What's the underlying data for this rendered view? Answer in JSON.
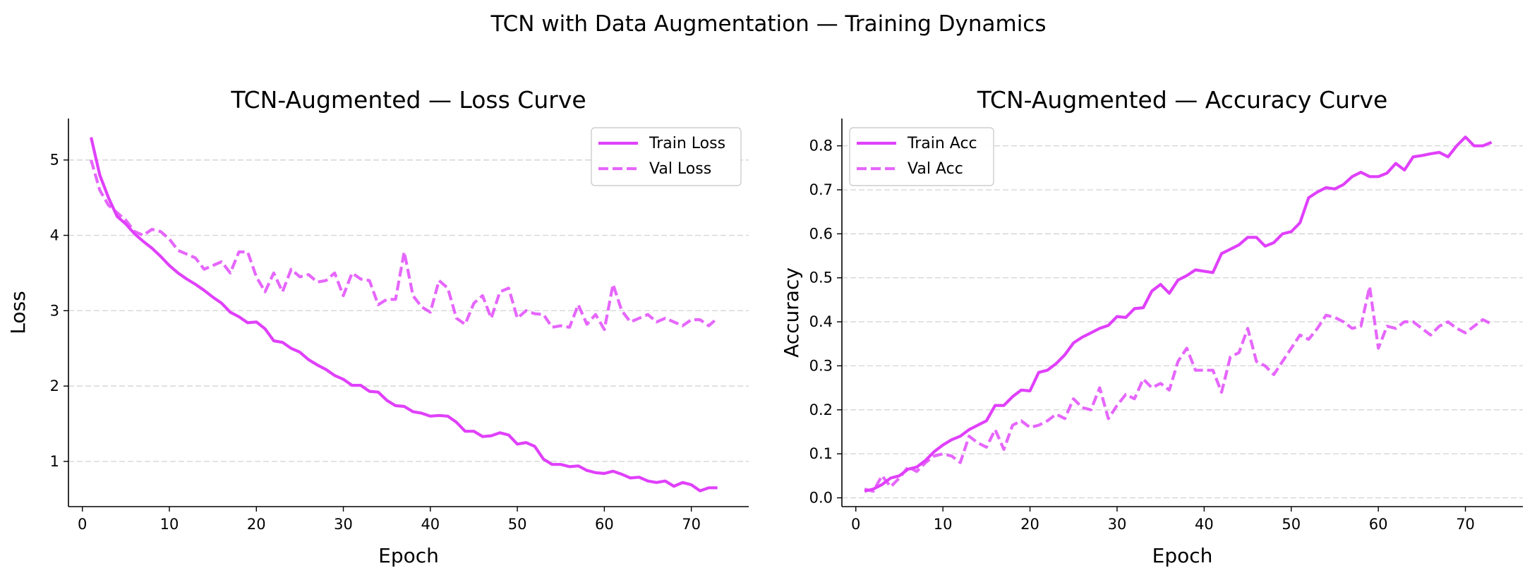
{
  "figure": {
    "suptitle": "TCN with Data Augmentation — Training Dynamics"
  },
  "colors": {
    "line": "#e040fb",
    "grid": "#cccccc",
    "axis": "#000000"
  },
  "chart_data": [
    {
      "type": "line",
      "title": "TCN-Augmented — Loss Curve",
      "xlabel": "Epoch",
      "ylabel": "Loss",
      "xlim": [
        -1.6,
        76.6
      ],
      "ylim": [
        0.4,
        5.55
      ],
      "xticks": [
        0,
        10,
        20,
        30,
        40,
        50,
        60,
        70
      ],
      "yticks": [
        1,
        2,
        3,
        4,
        5
      ],
      "xtick_labels": [
        "0",
        "10",
        "20",
        "30",
        "40",
        "50",
        "60",
        "70"
      ],
      "ytick_labels": [
        "1",
        "2",
        "3",
        "4",
        "5"
      ],
      "grid": "y",
      "legend_position": "upper right",
      "x": [
        1,
        2,
        3,
        4,
        5,
        6,
        7,
        8,
        9,
        10,
        11,
        12,
        13,
        14,
        15,
        16,
        17,
        18,
        19,
        20,
        21,
        22,
        23,
        24,
        25,
        26,
        27,
        28,
        29,
        30,
        31,
        32,
        33,
        34,
        35,
        36,
        37,
        38,
        39,
        40,
        41,
        42,
        43,
        44,
        45,
        46,
        47,
        48,
        49,
        50,
        51,
        52,
        53,
        54,
        55,
        56,
        57,
        58,
        59,
        60,
        61,
        62,
        63,
        64,
        65,
        66,
        67,
        68,
        69,
        70,
        71,
        72,
        73
      ],
      "series": [
        {
          "name": "Train Loss",
          "style": "solid",
          "values": [
            5.3,
            4.8,
            4.5,
            4.25,
            4.15,
            4.02,
            3.92,
            3.83,
            3.72,
            3.6,
            3.5,
            3.42,
            3.35,
            3.27,
            3.18,
            3.1,
            2.98,
            2.92,
            2.84,
            2.85,
            2.76,
            2.6,
            2.58,
            2.5,
            2.45,
            2.35,
            2.28,
            2.22,
            2.14,
            2.09,
            2.01,
            2.01,
            1.93,
            1.92,
            1.81,
            1.74,
            1.73,
            1.66,
            1.64,
            1.6,
            1.61,
            1.6,
            1.52,
            1.4,
            1.4,
            1.33,
            1.34,
            1.38,
            1.35,
            1.23,
            1.25,
            1.2,
            1.03,
            0.96,
            0.96,
            0.93,
            0.94,
            0.88,
            0.85,
            0.84,
            0.87,
            0.83,
            0.78,
            0.79,
            0.74,
            0.72,
            0.74,
            0.67,
            0.72,
            0.69,
            0.61,
            0.65,
            0.65
          ]
        },
        {
          "name": "Val Loss",
          "style": "dashed",
          "values": [
            5.0,
            4.6,
            4.4,
            4.3,
            4.2,
            4.05,
            4.0,
            4.08,
            4.05,
            3.95,
            3.8,
            3.75,
            3.7,
            3.55,
            3.6,
            3.65,
            3.5,
            3.78,
            3.78,
            3.45,
            3.25,
            3.5,
            3.25,
            3.55,
            3.45,
            3.48,
            3.38,
            3.4,
            3.5,
            3.2,
            3.5,
            3.42,
            3.4,
            3.08,
            3.15,
            3.15,
            3.78,
            3.2,
            3.05,
            2.98,
            3.4,
            3.3,
            2.9,
            2.82,
            3.1,
            3.2,
            2.9,
            3.25,
            3.3,
            2.9,
            3.0,
            2.96,
            2.95,
            2.78,
            2.8,
            2.78,
            3.08,
            2.82,
            2.95,
            2.75,
            3.35,
            3.0,
            2.85,
            2.9,
            2.95,
            2.85,
            2.9,
            2.85,
            2.8,
            2.88,
            2.88,
            2.8,
            2.9
          ]
        }
      ]
    },
    {
      "type": "line",
      "title": "TCN-Augmented — Accuracy Curve",
      "xlabel": "Epoch",
      "ylabel": "Accuracy",
      "xlim": [
        -1.6,
        76.6
      ],
      "ylim": [
        -0.02,
        0.862
      ],
      "xticks": [
        0,
        10,
        20,
        30,
        40,
        50,
        60,
        70
      ],
      "yticks": [
        0.0,
        0.1,
        0.2,
        0.3,
        0.4,
        0.5,
        0.6,
        0.7,
        0.8
      ],
      "xtick_labels": [
        "0",
        "10",
        "20",
        "30",
        "40",
        "50",
        "60",
        "70"
      ],
      "ytick_labels": [
        "0.0",
        "0.1",
        "0.2",
        "0.3",
        "0.4",
        "0.5",
        "0.6",
        "0.7",
        "0.8"
      ],
      "grid": "y",
      "legend_position": "upper left",
      "x": [
        1,
        2,
        3,
        4,
        5,
        6,
        7,
        8,
        9,
        10,
        11,
        12,
        13,
        14,
        15,
        16,
        17,
        18,
        19,
        20,
        21,
        22,
        23,
        24,
        25,
        26,
        27,
        28,
        29,
        30,
        31,
        32,
        33,
        34,
        35,
        36,
        37,
        38,
        39,
        40,
        41,
        42,
        43,
        44,
        45,
        46,
        47,
        48,
        49,
        50,
        51,
        52,
        53,
        54,
        55,
        56,
        57,
        58,
        59,
        60,
        61,
        62,
        63,
        64,
        65,
        66,
        67,
        68,
        69,
        70,
        71,
        72,
        73
      ],
      "series": [
        {
          "name": "Train Acc",
          "style": "solid",
          "values": [
            0.015,
            0.02,
            0.03,
            0.045,
            0.05,
            0.065,
            0.07,
            0.085,
            0.105,
            0.12,
            0.132,
            0.14,
            0.155,
            0.165,
            0.175,
            0.21,
            0.21,
            0.23,
            0.245,
            0.243,
            0.285,
            0.29,
            0.305,
            0.325,
            0.352,
            0.365,
            0.375,
            0.385,
            0.392,
            0.412,
            0.41,
            0.43,
            0.432,
            0.47,
            0.485,
            0.465,
            0.495,
            0.505,
            0.518,
            0.515,
            0.512,
            0.555,
            0.565,
            0.575,
            0.592,
            0.592,
            0.572,
            0.58,
            0.6,
            0.605,
            0.625,
            0.682,
            0.695,
            0.705,
            0.702,
            0.712,
            0.73,
            0.74,
            0.73,
            0.73,
            0.738,
            0.76,
            0.745,
            0.775,
            0.778,
            0.782,
            0.785,
            0.775,
            0.8,
            0.82,
            0.8,
            0.8,
            0.808
          ]
        },
        {
          "name": "Val Acc",
          "style": "dashed",
          "values": [
            0.02,
            0.015,
            0.05,
            0.025,
            0.045,
            0.07,
            0.06,
            0.08,
            0.095,
            0.1,
            0.095,
            0.08,
            0.14,
            0.125,
            0.115,
            0.155,
            0.11,
            0.165,
            0.175,
            0.16,
            0.165,
            0.175,
            0.19,
            0.18,
            0.225,
            0.205,
            0.2,
            0.25,
            0.18,
            0.21,
            0.235,
            0.225,
            0.27,
            0.25,
            0.26,
            0.245,
            0.31,
            0.34,
            0.29,
            0.29,
            0.29,
            0.24,
            0.32,
            0.33,
            0.385,
            0.31,
            0.3,
            0.28,
            0.31,
            0.34,
            0.37,
            0.36,
            0.385,
            0.415,
            0.41,
            0.4,
            0.385,
            0.39,
            0.48,
            0.34,
            0.39,
            0.385,
            0.4,
            0.4,
            0.385,
            0.37,
            0.39,
            0.4,
            0.385,
            0.375,
            0.39,
            0.405,
            0.395
          ]
        }
      ]
    }
  ]
}
